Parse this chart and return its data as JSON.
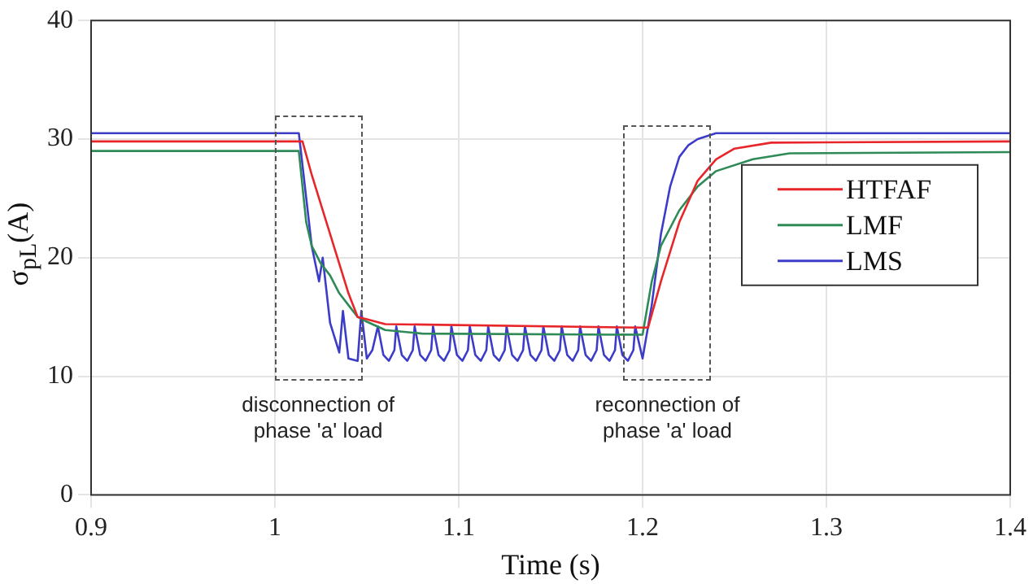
{
  "chart_data": {
    "type": "line",
    "xlabel": "Time (s)",
    "ylabel": "σ$_{pL}$(A)",
    "xlim": [
      0.9,
      1.4
    ],
    "xticks": [
      0.9,
      1,
      1.1,
      1.2,
      1.3,
      1.4
    ],
    "ylim": [
      0,
      40
    ],
    "yticks": [
      0,
      10,
      20,
      30,
      40
    ],
    "grid": true,
    "legend": "right",
    "line_style": "solid",
    "marker": "none",
    "annotations": [
      "disconnection of\nphase 'a' load",
      "reconnection of\nphase 'a' load"
    ],
    "series": [
      {
        "name": "HTFAF",
        "color": "#e8262a",
        "x": [
          0.9,
          1.015,
          1.02,
          1.03,
          1.04,
          1.045,
          1.05,
          1.06,
          1.2,
          1.203,
          1.21,
          1.22,
          1.23,
          1.24,
          1.25,
          1.27,
          1.4
        ],
        "values": [
          29.8,
          29.8,
          27,
          22,
          17,
          15,
          14.8,
          14.4,
          14.1,
          14.1,
          18,
          23,
          26.5,
          28.3,
          29.2,
          29.7,
          29.8
        ]
      },
      {
        "name": "LMF",
        "color": "#2e8b57",
        "x": [
          0.9,
          1.013,
          1.017,
          1.02,
          1.025,
          1.03,
          1.035,
          1.04,
          1.045,
          1.05,
          1.06,
          1.08,
          1.2,
          1.205,
          1.21,
          1.22,
          1.23,
          1.24,
          1.26,
          1.28,
          1.4
        ],
        "values": [
          29,
          29,
          23,
          21,
          19.5,
          18.5,
          17,
          16,
          15,
          14.6,
          13.9,
          13.6,
          13.5,
          18,
          21,
          24,
          26,
          27.3,
          28.3,
          28.8,
          28.9
        ]
      },
      {
        "name": "LMS",
        "color": "#3c3cc8",
        "x": [
          0.9,
          1.013,
          1.02,
          1.024,
          1.026,
          1.03,
          1.035,
          1.037,
          1.04,
          1.045,
          1.047,
          1.05,
          1.053,
          1.056,
          1.059,
          1.062,
          1.065,
          1.066,
          1.069,
          1.072,
          1.075,
          1.076,
          1.079,
          1.082,
          1.085,
          1.086,
          1.089,
          1.092,
          1.095,
          1.096,
          1.099,
          1.102,
          1.105,
          1.106,
          1.109,
          1.112,
          1.115,
          1.116,
          1.119,
          1.122,
          1.125,
          1.126,
          1.129,
          1.132,
          1.135,
          1.136,
          1.139,
          1.142,
          1.145,
          1.146,
          1.149,
          1.152,
          1.155,
          1.156,
          1.159,
          1.162,
          1.165,
          1.166,
          1.169,
          1.172,
          1.175,
          1.176,
          1.179,
          1.182,
          1.185,
          1.186,
          1.189,
          1.192,
          1.195,
          1.196,
          1.2,
          1.205,
          1.21,
          1.215,
          1.22,
          1.225,
          1.23,
          1.24,
          1.4
        ],
        "values": [
          30.5,
          30.5,
          21,
          18,
          20,
          14.5,
          12,
          15.5,
          11.5,
          11.3,
          15.5,
          11.5,
          12.2,
          14.2,
          11.8,
          11.3,
          12.2,
          14.2,
          11.8,
          11.3,
          12.2,
          14.2,
          11.8,
          11.3,
          12.2,
          14.2,
          11.8,
          11.3,
          12.2,
          14.2,
          11.8,
          11.3,
          12.2,
          14.2,
          11.8,
          11.3,
          12.2,
          14.2,
          11.8,
          11.3,
          12.2,
          14.2,
          11.8,
          11.3,
          12.2,
          14.2,
          11.8,
          11.3,
          12.2,
          14.2,
          11.8,
          11.3,
          12.2,
          14.2,
          11.8,
          11.3,
          12.2,
          14.2,
          11.8,
          11.3,
          12.2,
          14.2,
          11.8,
          11.3,
          12.2,
          14.2,
          11.8,
          11.3,
          12.2,
          14.2,
          11.5,
          16,
          22,
          26,
          28.5,
          29.5,
          30,
          30.5,
          30.5
        ]
      }
    ]
  }
}
